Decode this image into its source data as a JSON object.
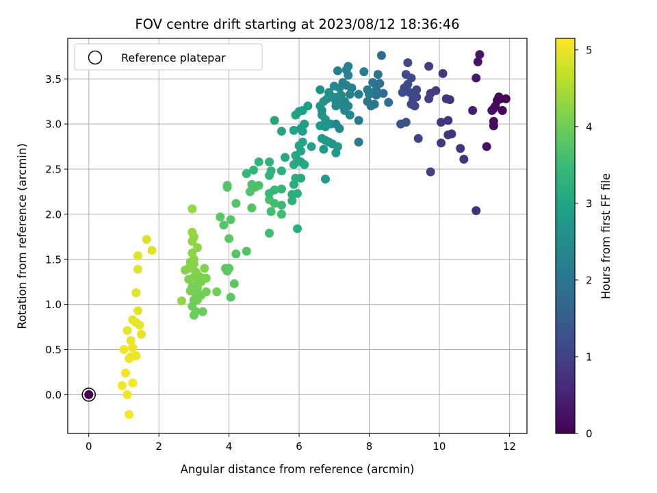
{
  "chart_data": {
    "type": "scatter",
    "title": "FOV centre drift starting at 2023/08/12 18:36:46",
    "xlabel": "Angular distance from reference (arcmin)",
    "ylabel": "Rotation from reference (arcmin)",
    "xlim": [
      -0.6,
      12.5
    ],
    "ylim": [
      -0.43,
      3.95
    ],
    "xticks": [
      0,
      2,
      4,
      6,
      8,
      10,
      12
    ],
    "xtick_labels": [
      "0",
      "2",
      "4",
      "6",
      "8",
      "10",
      "12"
    ],
    "yticks": [
      0.0,
      0.5,
      1.0,
      1.5,
      2.0,
      2.5,
      3.0,
      3.5
    ],
    "ytick_labels": [
      "0.0",
      "0.5",
      "1.0",
      "1.5",
      "2.0",
      "2.5",
      "3.0",
      "3.5"
    ],
    "grid": true,
    "colormap": "viridis",
    "colorbar": {
      "label": "Hours from first FF file",
      "range": [
        0,
        5.15
      ],
      "ticks": [
        0,
        1,
        2,
        3,
        4,
        5
      ],
      "tick_labels": [
        "0",
        "1",
        "2",
        "3",
        "4",
        "5"
      ]
    },
    "legend": {
      "placement": "top-left",
      "entries": [
        {
          "label": "Reference platepar",
          "marker": "open-circle"
        }
      ]
    },
    "reference_point": {
      "x": 0,
      "y": 0
    },
    "points": [
      [
        0,
        0,
        0.0
      ],
      [
        1.15,
        -0.22,
        5.1
      ],
      [
        0.95,
        0.1,
        5.08
      ],
      [
        1.1,
        0.0,
        5.07
      ],
      [
        1.25,
        0.13,
        5.06
      ],
      [
        1.05,
        0.24,
        5.05
      ],
      [
        1.0,
        0.5,
        5.05
      ],
      [
        1.2,
        0.42,
        5.04
      ],
      [
        1.35,
        0.43,
        5.03
      ],
      [
        1.15,
        0.4,
        5.02
      ],
      [
        1.25,
        0.52,
        5.01
      ],
      [
        1.2,
        0.6,
        5.0
      ],
      [
        1.1,
        0.71,
        4.99
      ],
      [
        1.5,
        0.67,
        4.98
      ],
      [
        1.45,
        0.77,
        4.97
      ],
      [
        1.35,
        0.8,
        4.96
      ],
      [
        1.25,
        0.83,
        4.95
      ],
      [
        1.4,
        0.93,
        4.94
      ],
      [
        1.35,
        1.13,
        4.93
      ],
      [
        1.4,
        1.39,
        4.92
      ],
      [
        1.4,
        1.54,
        4.91
      ],
      [
        1.8,
        1.6,
        4.9
      ],
      [
        1.65,
        1.72,
        4.89
      ],
      [
        2.65,
        1.04,
        4.3
      ],
      [
        2.95,
        2.06,
        4.35
      ],
      [
        2.95,
        1.8,
        4.3
      ],
      [
        3.0,
        1.75,
        4.28
      ],
      [
        2.95,
        1.7,
        4.27
      ],
      [
        3.1,
        1.63,
        4.25
      ],
      [
        2.95,
        1.57,
        4.24
      ],
      [
        3.0,
        1.5,
        4.22
      ],
      [
        2.9,
        1.47,
        4.21
      ],
      [
        3.0,
        1.45,
        4.2
      ],
      [
        2.85,
        1.4,
        4.19
      ],
      [
        2.75,
        1.38,
        4.18
      ],
      [
        3.05,
        1.36,
        4.17
      ],
      [
        3.3,
        1.4,
        4.16
      ],
      [
        3.1,
        1.33,
        4.15
      ],
      [
        3.2,
        1.3,
        4.14
      ],
      [
        3.0,
        1.3,
        4.13
      ],
      [
        2.85,
        1.28,
        4.12
      ],
      [
        3.35,
        1.29,
        4.11
      ],
      [
        3.2,
        1.25,
        4.1
      ],
      [
        3.1,
        1.22,
        4.09
      ],
      [
        2.95,
        1.2,
        4.08
      ],
      [
        3.1,
        1.18,
        4.07
      ],
      [
        2.9,
        1.15,
        4.06
      ],
      [
        3.05,
        1.12,
        4.05
      ],
      [
        3.35,
        1.14,
        4.04
      ],
      [
        3.65,
        1.14,
        4.03
      ],
      [
        3.2,
        1.1,
        4.02
      ],
      [
        3.0,
        1.05,
        4.01
      ],
      [
        3.1,
        1.05,
        4.0
      ],
      [
        2.95,
        0.98,
        3.99
      ],
      [
        3.05,
        0.92,
        3.98
      ],
      [
        3.25,
        0.92,
        3.97
      ],
      [
        3.0,
        0.88,
        3.96
      ],
      [
        3.9,
        1.4,
        3.85
      ],
      [
        3.95,
        1.37,
        3.84
      ],
      [
        4.0,
        1.4,
        3.83
      ],
      [
        4.05,
        1.08,
        3.82
      ],
      [
        4.15,
        1.23,
        3.81
      ],
      [
        4.0,
        1.73,
        3.8
      ],
      [
        3.75,
        1.97,
        3.79
      ],
      [
        3.85,
        1.88,
        3.78
      ],
      [
        4.05,
        1.94,
        3.77
      ],
      [
        4.2,
        1.56,
        3.76
      ],
      [
        4.5,
        1.59,
        3.75
      ],
      [
        4.2,
        2.12,
        3.74
      ],
      [
        3.95,
        2.3,
        3.73
      ],
      [
        3.95,
        2.32,
        3.72
      ],
      [
        4.65,
        2.07,
        3.71
      ],
      [
        4.6,
        2.25,
        3.7
      ],
      [
        4.75,
        2.3,
        3.69
      ],
      [
        4.65,
        2.33,
        3.68
      ],
      [
        4.85,
        2.32,
        3.66
      ],
      [
        5.15,
        2.16,
        3.6
      ],
      [
        5.2,
        2.03,
        3.58
      ],
      [
        5.15,
        1.79,
        3.57
      ],
      [
        5.3,
        2.12,
        3.55
      ],
      [
        5.5,
        2.0,
        3.53
      ],
      [
        5.5,
        2.1,
        3.5
      ],
      [
        5.3,
        2.27,
        3.48
      ],
      [
        5.15,
        2.23,
        3.45
      ],
      [
        5.5,
        2.28,
        3.42
      ],
      [
        4.5,
        2.45,
        3.4
      ],
      [
        4.7,
        2.49,
        3.38
      ],
      [
        4.85,
        2.58,
        3.35
      ],
      [
        5.15,
        2.43,
        3.33
      ],
      [
        5.2,
        2.48,
        3.32
      ],
      [
        5.15,
        2.58,
        3.3
      ],
      [
        5.5,
        2.48,
        3.28
      ],
      [
        5.8,
        2.15,
        3.26
      ],
      [
        5.8,
        2.22,
        3.24
      ],
      [
        5.95,
        2.23,
        3.22
      ],
      [
        5.95,
        1.84,
        3.2
      ],
      [
        5.85,
        2.33,
        3.18
      ],
      [
        5.9,
        2.4,
        3.16
      ],
      [
        6.05,
        2.4,
        3.14
      ],
      [
        5.85,
        2.55,
        3.12
      ],
      [
        5.95,
        2.6,
        3.1
      ],
      [
        6.05,
        2.58,
        3.08
      ],
      [
        5.9,
        2.65,
        3.06
      ],
      [
        6.15,
        2.55,
        3.04
      ],
      [
        6.05,
        2.7,
        3.02
      ],
      [
        6.0,
        2.76,
        3.0
      ],
      [
        6.1,
        2.8,
        2.98
      ],
      [
        6.35,
        2.75,
        2.96
      ],
      [
        5.6,
        2.63,
        3.1
      ],
      [
        5.3,
        3.04,
        3.05
      ],
      [
        5.5,
        2.92,
        3.0
      ],
      [
        5.85,
        2.93,
        2.95
      ],
      [
        5.9,
        3.1,
        2.92
      ],
      [
        6.0,
        3.14,
        2.9
      ],
      [
        6.1,
        3.15,
        2.88
      ],
      [
        6.25,
        3.2,
        2.86
      ],
      [
        6.15,
        3.0,
        2.9
      ],
      [
        6.05,
        2.95,
        2.88
      ],
      [
        6.1,
        2.92,
        2.86
      ],
      [
        6.6,
        2.98,
        2.82
      ],
      [
        6.65,
        2.84,
        2.8
      ],
      [
        6.75,
        2.82,
        2.78
      ],
      [
        6.85,
        2.8,
        2.76
      ],
      [
        6.7,
        2.72,
        2.75
      ],
      [
        6.95,
        2.78,
        2.74
      ],
      [
        7.05,
        2.68,
        2.73
      ],
      [
        7.1,
        2.75,
        2.72
      ],
      [
        6.75,
        2.39,
        2.8
      ],
      [
        6.75,
        2.97,
        2.7
      ],
      [
        6.9,
        3.0,
        2.68
      ],
      [
        6.75,
        3.05,
        2.66
      ],
      [
        6.65,
        3.1,
        2.65
      ],
      [
        6.6,
        3.2,
        2.64
      ],
      [
        6.7,
        3.25,
        2.62
      ],
      [
        6.8,
        3.28,
        2.6
      ],
      [
        6.65,
        3.15,
        2.6
      ],
      [
        6.85,
        3.35,
        2.58
      ],
      [
        6.6,
        3.38,
        2.55
      ],
      [
        6.95,
        3.3,
        2.53
      ],
      [
        7.05,
        3.25,
        2.5
      ],
      [
        7.1,
        3.3,
        2.48
      ],
      [
        7.0,
        3.42,
        2.46
      ],
      [
        7.15,
        3.4,
        2.45
      ],
      [
        7.2,
        3.32,
        2.44
      ],
      [
        7.05,
        3.2,
        2.43
      ],
      [
        7.25,
        3.2,
        2.42
      ],
      [
        7.3,
        3.15,
        2.41
      ],
      [
        7.05,
        3.0,
        2.4
      ],
      [
        7.15,
        2.95,
        2.38
      ],
      [
        7.45,
        3.1,
        2.36
      ],
      [
        7.3,
        3.25,
        2.35
      ],
      [
        7.4,
        3.2,
        2.33
      ],
      [
        7.45,
        3.33,
        2.3
      ],
      [
        7.35,
        3.43,
        2.28
      ],
      [
        7.5,
        3.4,
        2.27
      ],
      [
        7.4,
        3.54,
        2.26
      ],
      [
        7.35,
        3.6,
        2.25
      ],
      [
        7.4,
        3.64,
        2.24
      ],
      [
        7.1,
        3.59,
        2.23
      ],
      [
        7.25,
        3.46,
        2.22
      ],
      [
        7.7,
        3.33,
        2.2
      ],
      [
        7.85,
        3.58,
        2.18
      ],
      [
        7.7,
        3.04,
        2.16
      ],
      [
        7.7,
        2.8,
        2.15
      ],
      [
        7.95,
        3.38,
        2.12
      ],
      [
        8.0,
        3.33,
        2.1
      ],
      [
        7.95,
        3.25,
        2.08
      ],
      [
        8.05,
        3.2,
        2.06
      ],
      [
        8.1,
        3.46,
        2.04
      ],
      [
        8.15,
        3.22,
        2.02
      ],
      [
        8.2,
        3.38,
        2.0
      ],
      [
        8.2,
        3.32,
        1.98
      ],
      [
        8.25,
        3.55,
        1.96
      ],
      [
        8.3,
        3.45,
        1.94
      ],
      [
        8.4,
        3.34,
        1.9
      ],
      [
        8.55,
        3.24,
        1.85
      ],
      [
        8.35,
        3.76,
        1.8
      ],
      [
        8.9,
        3.0,
        1.3
      ],
      [
        9.05,
        3.02,
        1.25
      ],
      [
        8.95,
        3.35,
        1.2
      ],
      [
        9.0,
        3.4,
        1.18
      ],
      [
        9.1,
        3.44,
        1.16
      ],
      [
        9.2,
        3.51,
        1.15
      ],
      [
        9.05,
        3.55,
        1.14
      ],
      [
        9.1,
        3.68,
        1.13
      ],
      [
        9.15,
        3.35,
        1.12
      ],
      [
        9.2,
        3.22,
        1.1
      ],
      [
        9.3,
        3.2,
        1.09
      ],
      [
        9.25,
        3.28,
        1.08
      ],
      [
        9.35,
        3.38,
        1.07
      ],
      [
        9.35,
        3.3,
        1.06
      ],
      [
        9.4,
        2.84,
        1.05
      ],
      [
        9.7,
        3.28,
        0.95
      ],
      [
        9.75,
        3.34,
        0.94
      ],
      [
        9.7,
        3.64,
        0.93
      ],
      [
        9.9,
        3.37,
        0.92
      ],
      [
        9.75,
        2.47,
        1.0
      ],
      [
        10.1,
        3.56,
        0.85
      ],
      [
        10.05,
        3.02,
        0.84
      ],
      [
        10.05,
        2.79,
        0.83
      ],
      [
        10.25,
        2.88,
        0.82
      ],
      [
        10.25,
        3.04,
        0.81
      ],
      [
        10.2,
        3.28,
        0.8
      ],
      [
        10.3,
        3.27,
        0.79
      ],
      [
        10.35,
        2.89,
        0.78
      ],
      [
        10.6,
        2.73,
        0.77
      ],
      [
        10.7,
        2.61,
        0.76
      ],
      [
        11.05,
        2.04,
        0.7
      ],
      [
        10.95,
        3.15,
        0.4
      ],
      [
        11.05,
        3.51,
        0.35
      ],
      [
        11.1,
        3.69,
        0.3
      ],
      [
        11.15,
        3.77,
        0.28
      ],
      [
        11.35,
        2.75,
        0.25
      ],
      [
        11.5,
        3.15,
        0.2
      ],
      [
        11.55,
        3.17,
        0.18
      ],
      [
        11.55,
        3.03,
        0.16
      ],
      [
        11.55,
        2.98,
        0.15
      ],
      [
        11.6,
        3.2,
        0.14
      ],
      [
        11.7,
        3.3,
        0.12
      ],
      [
        11.75,
        3.28,
        0.1
      ],
      [
        11.65,
        3.26,
        0.09
      ],
      [
        11.8,
        3.15,
        0.08
      ],
      [
        11.9,
        3.28,
        0.06
      ]
    ]
  }
}
